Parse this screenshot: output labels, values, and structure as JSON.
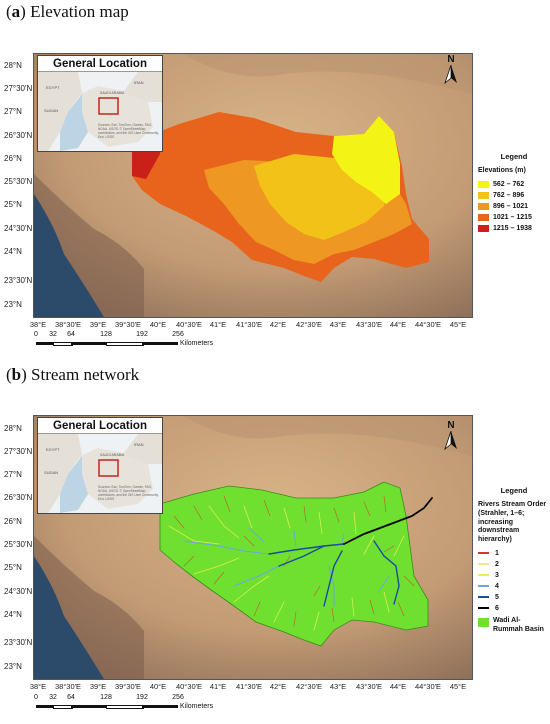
{
  "panel_a": {
    "title_prefix": "(",
    "title_letter": "a",
    "title_rest": ") Elevation map",
    "inset_title": "General Location",
    "inset_labels": [
      "EGYPT",
      "SAUDI ARABIA",
      "IRAN",
      "SUDAN"
    ],
    "inset_credit": "Sources: Esri, TomTom, Garmin, FAO, NOAA, USGS, © OpenStreetMap contributors, and the GIS User Community, Esri, USGS",
    "legend_title": "Legend",
    "legend_subtitle": "Elevations (m)",
    "legend_items": [
      {
        "label": "562 – 762",
        "color": "#f3f315"
      },
      {
        "label": "762 – 896",
        "color": "#f2c219"
      },
      {
        "label": "896 – 1021",
        "color": "#ee9722"
      },
      {
        "label": "1021 – 1215",
        "color": "#e8641c"
      },
      {
        "label": "1215 – 1938",
        "color": "#c9201a"
      }
    ]
  },
  "panel_b": {
    "title_prefix": "(",
    "title_letter": "b",
    "title_rest": ") Stream network",
    "inset_title": "General Location",
    "inset_labels": [
      "EGYPT",
      "SAUDI ARABIA",
      "IRAN",
      "SUDAN"
    ],
    "inset_credit": "Sources: Esri, TomTom, Garmin, FAO, NOAA, USGS, © OpenStreetMap contributors, and the GIS User Community, Esri, USGS",
    "legend_title": "Legend",
    "legend_subtitle": "Rivers Stream Order (Strahler, 1–6; increasing downstream hierarchy)",
    "legend_items": [
      {
        "label": "1",
        "color": "#d8342a"
      },
      {
        "label": "2",
        "color": "#f0e68c"
      },
      {
        "label": "3",
        "color": "#e8f050"
      },
      {
        "label": "4",
        "color": "#6aa6e0"
      },
      {
        "label": "5",
        "color": "#1c4aa0"
      },
      {
        "label": "6",
        "color": "#000000"
      }
    ],
    "basin_label": "Wadi Al-Rummah Basin",
    "basin_color": "#6fe030"
  },
  "axes": {
    "lat_labels": [
      "28°N",
      "27°30'N",
      "27°N",
      "26°30'N",
      "26°N",
      "25°30'N",
      "25°N",
      "24°30'N",
      "24°N",
      "23°30'N",
      "23°N"
    ],
    "lon_labels": [
      "38°E",
      "38°30'E",
      "39°E",
      "39°30'E",
      "40°E",
      "40°30'E",
      "41°E",
      "41°30'E",
      "42°E",
      "42°30'E",
      "43°E",
      "43°30'E",
      "44°E",
      "44°30'E",
      "45°E"
    ]
  },
  "scale": {
    "ticks": [
      "0",
      "32",
      "64",
      "128",
      "192",
      "256"
    ],
    "unit": "Kilometers"
  },
  "north_label": "N",
  "colors": {
    "water": "#2c4a6a",
    "desert_light": "#d8b48c",
    "desert_dark": "#8a6b52"
  }
}
